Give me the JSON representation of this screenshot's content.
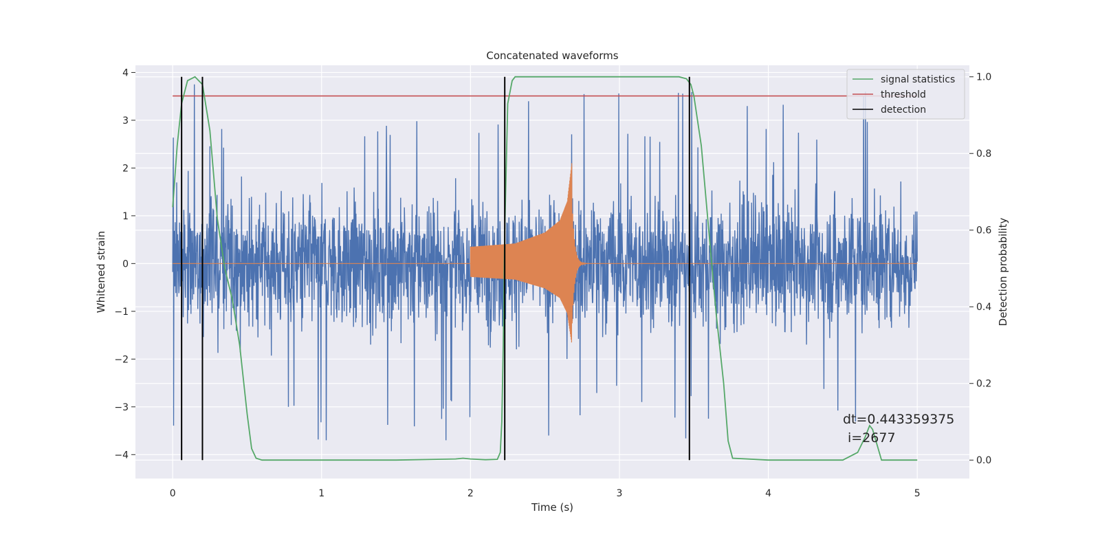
{
  "chart_data": {
    "type": "line",
    "title": "Concatenated waveforms",
    "xlabel": "Time (s)",
    "ylabel": "Whitened strain",
    "y2label": "Detection probability",
    "xlim": [
      -0.25,
      5.35
    ],
    "ylim": [
      -4.5,
      4.15
    ],
    "y2lim": [
      -0.048,
      1.03
    ],
    "x_ticks": [
      0,
      1,
      2,
      3,
      4,
      5
    ],
    "y_ticks": [
      -4,
      -3,
      -2,
      -1,
      0,
      1,
      2,
      3,
      4
    ],
    "y2_ticks": [
      0.0,
      0.2,
      0.4,
      0.6,
      0.8,
      1.0
    ],
    "x_tick_labels": [
      "0",
      "1",
      "2",
      "3",
      "4",
      "5"
    ],
    "y_tick_labels": [
      "−4",
      "−3",
      "−2",
      "−1",
      "0",
      "1",
      "2",
      "3",
      "4"
    ],
    "y2_tick_labels": [
      "0.0",
      "0.2",
      "0.4",
      "0.6",
      "0.8",
      "1.0"
    ],
    "grid": true,
    "legend_position": "top-right",
    "legend": [
      {
        "label": "signal statistics",
        "color": "#55a868"
      },
      {
        "label": "threshold",
        "color": "#c44e52"
      },
      {
        "label": "detection",
        "color": "#000000"
      }
    ],
    "annotation": {
      "line1": "dt=0.443359375",
      "line2": "i=2677"
    },
    "colors": {
      "noise": "#4c72b0",
      "template": "#dd8452",
      "background": "#eaeaf2",
      "grid": "#ffffff"
    },
    "noise": {
      "x_range": [
        0,
        5
      ],
      "typical_amplitude": 1.2,
      "peak_amplitude": 3.8,
      "min_value": -3.7
    },
    "template": {
      "x_range": [
        2.0,
        2.68
      ],
      "amplitude_points": [
        [
          2.0,
          0.35
        ],
        [
          2.3,
          0.42
        ],
        [
          2.5,
          0.65
        ],
        [
          2.6,
          0.9
        ],
        [
          2.65,
          1.3
        ],
        [
          2.68,
          2.1
        ]
      ],
      "ringdown_end": 2.8
    },
    "threshold": {
      "value": 0.95,
      "x_range": [
        0,
        5
      ]
    },
    "detections": [
      0.06,
      0.2,
      2.23,
      3.47
    ],
    "signal_statistics": {
      "x": [
        0.0,
        0.03,
        0.06,
        0.1,
        0.15,
        0.2,
        0.25,
        0.3,
        0.35,
        0.4,
        0.45,
        0.5,
        0.53,
        0.56,
        0.6,
        1.0,
        1.5,
        1.9,
        1.95,
        2.0,
        2.1,
        2.18,
        2.2,
        2.21,
        2.22,
        2.23,
        2.25,
        2.28,
        2.3,
        2.4,
        3.0,
        3.4,
        3.45,
        3.48,
        3.5,
        3.55,
        3.6,
        3.65,
        3.7,
        3.73,
        3.76,
        4.0,
        4.5,
        4.6,
        4.65,
        4.68,
        4.7,
        4.73,
        4.76,
        5.0
      ],
      "y": [
        0.66,
        0.82,
        0.93,
        0.99,
        1.0,
        0.98,
        0.86,
        0.63,
        0.5,
        0.42,
        0.3,
        0.12,
        0.03,
        0.005,
        0.0,
        0.0,
        0.0,
        0.003,
        0.005,
        0.003,
        0.001,
        0.002,
        0.02,
        0.1,
        0.3,
        0.6,
        0.93,
        0.99,
        1.0,
        1.0,
        1.0,
        1.0,
        0.995,
        0.98,
        0.95,
        0.82,
        0.6,
        0.38,
        0.2,
        0.05,
        0.005,
        0.0,
        0.0,
        0.02,
        0.06,
        0.09,
        0.08,
        0.04,
        0.0,
        0.0
      ]
    }
  }
}
